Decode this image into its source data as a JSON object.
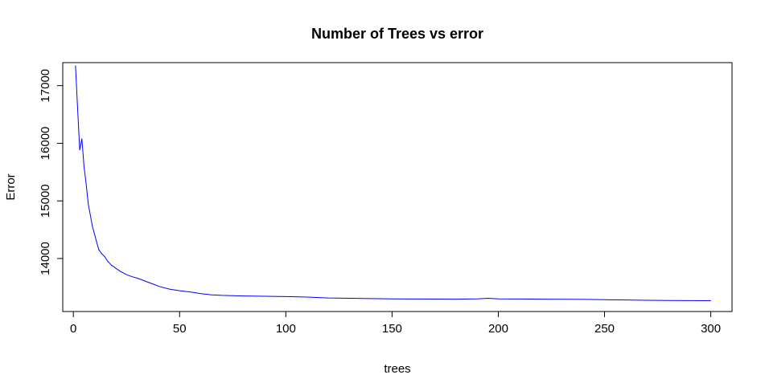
{
  "chart_data": {
    "type": "line",
    "title": "Number of Trees vs error",
    "xlabel": "trees",
    "ylabel": "Error",
    "xlim": [
      -5,
      310
    ],
    "ylim": [
      13080,
      17400
    ],
    "xticks": [
      0,
      50,
      100,
      150,
      200,
      250,
      300
    ],
    "yticks": [
      14000,
      15000,
      16000,
      17000
    ],
    "grid": false,
    "legend": "none",
    "series": [
      {
        "color": "#0000ff",
        "x": [
          1,
          2,
          3,
          4,
          5,
          6,
          7,
          8,
          9,
          10,
          11,
          12,
          13,
          14,
          15,
          16,
          17,
          18,
          19,
          20,
          22,
          25,
          28,
          30,
          33,
          35,
          38,
          40,
          45,
          50,
          55,
          60,
          65,
          70,
          80,
          90,
          100,
          110,
          120,
          130,
          140,
          150,
          160,
          170,
          180,
          190,
          195,
          200,
          210,
          220,
          230,
          240,
          250,
          260,
          270,
          280,
          290,
          300
        ],
        "y": [
          17350,
          16600,
          15880,
          16080,
          15600,
          15300,
          14950,
          14750,
          14550,
          14420,
          14280,
          14150,
          14100,
          14060,
          14020,
          13960,
          13920,
          13880,
          13860,
          13830,
          13780,
          13720,
          13680,
          13660,
          13620,
          13590,
          13550,
          13520,
          13470,
          13440,
          13420,
          13390,
          13370,
          13360,
          13350,
          13345,
          13340,
          13330,
          13315,
          13310,
          13305,
          13300,
          13298,
          13296,
          13295,
          13300,
          13310,
          13300,
          13297,
          13295,
          13292,
          13290,
          13285,
          13280,
          13275,
          13272,
          13270,
          13268
        ]
      }
    ]
  }
}
